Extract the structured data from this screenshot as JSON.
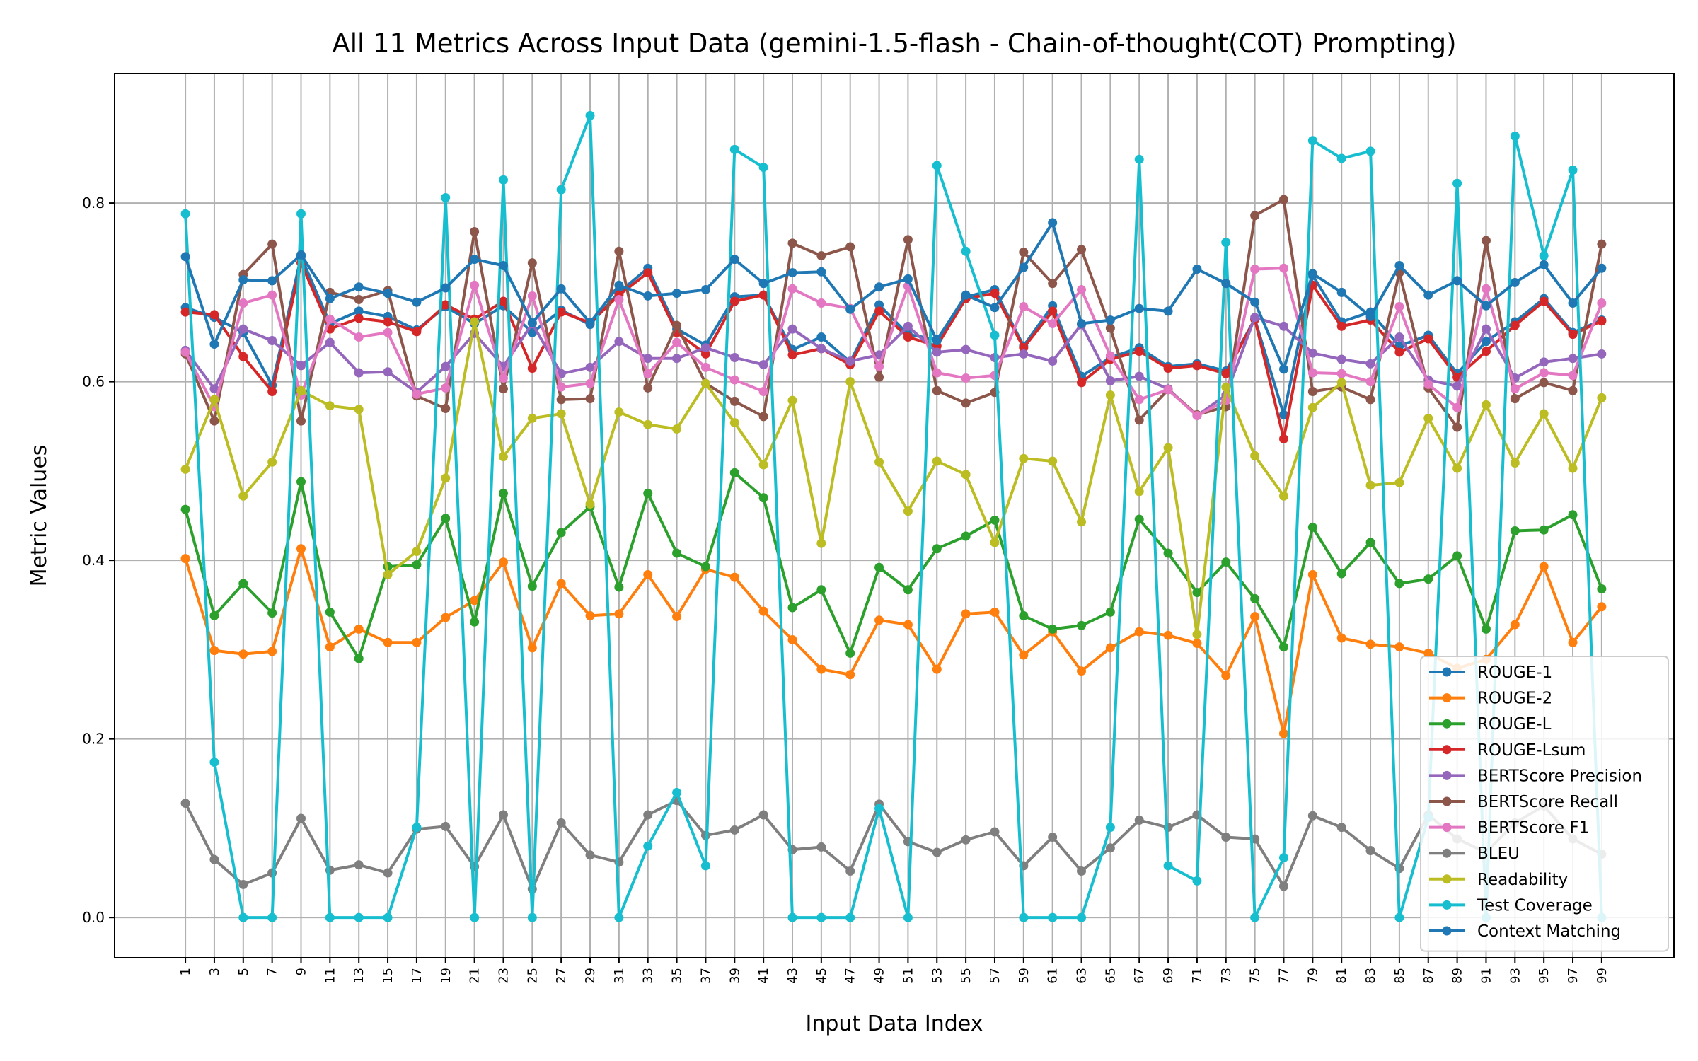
{
  "chart_data": {
    "type": "line",
    "title": "All 11 Metrics Across Input Data (gemini-1.5-flash - Chain-of-thought(COT) Prompting)",
    "xlabel": "Input Data Index",
    "ylabel": "Metric Values",
    "x": [
      1,
      3,
      5,
      7,
      9,
      11,
      13,
      15,
      17,
      19,
      21,
      23,
      25,
      27,
      29,
      31,
      33,
      35,
      37,
      39,
      41,
      43,
      45,
      47,
      49,
      51,
      53,
      55,
      57,
      59,
      61,
      63,
      65,
      67,
      69,
      71,
      73,
      75,
      77,
      79,
      81,
      83,
      85,
      87,
      89,
      91,
      93,
      95,
      97,
      99
    ],
    "xticks": [
      1,
      3,
      5,
      7,
      9,
      11,
      13,
      15,
      17,
      19,
      21,
      23,
      25,
      27,
      29,
      31,
      33,
      35,
      37,
      39,
      41,
      43,
      45,
      47,
      49,
      51,
      53,
      55,
      57,
      59,
      61,
      63,
      65,
      67,
      69,
      71,
      73,
      75,
      77,
      79,
      81,
      83,
      85,
      87,
      89,
      91,
      93,
      95,
      97,
      99
    ],
    "yticks": [
      0.0,
      0.2,
      0.4,
      0.6,
      0.8
    ],
    "ytick_labels": [
      "0.0",
      "0.2",
      "0.4",
      "0.6",
      "0.8"
    ],
    "xlim": [
      -3.9,
      104.0
    ],
    "ylim": [
      -0.045,
      0.945
    ],
    "grid": true,
    "legend_position": "lower-right",
    "series": [
      {
        "name": "ROUGE-1",
        "color": "#1f77b4",
        "values": [
          0.683,
          0.672,
          0.655,
          0.596,
          0.74,
          0.665,
          0.679,
          0.673,
          0.658,
          0.684,
          0.665,
          0.685,
          0.655,
          0.68,
          0.664,
          0.7,
          0.727,
          0.659,
          0.641,
          0.695,
          0.697,
          0.636,
          0.65,
          0.622,
          0.686,
          0.653,
          0.647,
          0.695,
          0.703,
          0.64,
          0.685,
          0.606,
          0.627,
          0.638,
          0.617,
          0.62,
          0.612,
          0.67,
          0.563,
          0.719,
          0.667,
          0.678,
          0.64,
          0.652,
          0.609,
          0.645,
          0.667,
          0.693,
          0.655,
          0.669
        ]
      },
      {
        "name": "ROUGE-2",
        "color": "#ff7f0e",
        "values": [
          0.402,
          0.299,
          0.295,
          0.298,
          0.413,
          0.303,
          0.323,
          0.308,
          0.308,
          0.336,
          0.355,
          0.398,
          0.302,
          0.374,
          0.338,
          0.34,
          0.384,
          0.337,
          0.39,
          0.381,
          0.343,
          0.311,
          0.278,
          0.272,
          0.333,
          0.328,
          0.278,
          0.34,
          0.342,
          0.294,
          0.32,
          0.276,
          0.302,
          0.32,
          0.316,
          0.307,
          0.271,
          0.337,
          0.206,
          0.384,
          0.313,
          0.306,
          0.303,
          0.296,
          0.279,
          0.289,
          0.328,
          0.393,
          0.308,
          0.348
        ]
      },
      {
        "name": "ROUGE-L",
        "color": "#2ca02c",
        "values": [
          0.457,
          0.338,
          0.374,
          0.341,
          0.488,
          0.342,
          0.29,
          0.393,
          0.395,
          0.447,
          0.331,
          0.475,
          0.371,
          0.431,
          0.46,
          0.37,
          0.475,
          0.408,
          0.393,
          0.498,
          0.47,
          0.347,
          0.367,
          0.296,
          0.392,
          0.367,
          0.413,
          0.427,
          0.445,
          0.338,
          0.323,
          0.327,
          0.342,
          0.446,
          0.408,
          0.364,
          0.398,
          0.357,
          0.303,
          0.437,
          0.385,
          0.42,
          0.374,
          0.379,
          0.405,
          0.323,
          0.433,
          0.434,
          0.451,
          0.368
        ]
      },
      {
        "name": "ROUGE-Lsum",
        "color": "#d62728",
        "values": [
          0.678,
          0.675,
          0.628,
          0.589,
          0.733,
          0.659,
          0.671,
          0.667,
          0.656,
          0.686,
          0.67,
          0.69,
          0.615,
          0.678,
          0.666,
          0.697,
          0.722,
          0.655,
          0.631,
          0.69,
          0.697,
          0.63,
          0.637,
          0.619,
          0.679,
          0.65,
          0.64,
          0.693,
          0.699,
          0.638,
          0.679,
          0.599,
          0.625,
          0.634,
          0.615,
          0.618,
          0.609,
          0.67,
          0.536,
          0.708,
          0.662,
          0.669,
          0.633,
          0.648,
          0.605,
          0.634,
          0.663,
          0.69,
          0.653,
          0.668
        ]
      },
      {
        "name": "BERTScore Precision",
        "color": "#9467bd",
        "values": [
          0.635,
          0.592,
          0.659,
          0.646,
          0.618,
          0.644,
          0.61,
          0.611,
          0.588,
          0.617,
          0.654,
          0.617,
          0.665,
          0.609,
          0.616,
          0.645,
          0.626,
          0.626,
          0.638,
          0.627,
          0.619,
          0.659,
          0.637,
          0.623,
          0.63,
          0.662,
          0.633,
          0.636,
          0.627,
          0.631,
          0.623,
          0.664,
          0.601,
          0.606,
          0.592,
          0.562,
          0.585,
          0.672,
          0.662,
          0.632,
          0.625,
          0.62,
          0.65,
          0.602,
          0.595,
          0.659,
          0.604,
          0.622,
          0.626,
          0.631
        ]
      },
      {
        "name": "BERTScore Recall",
        "color": "#8c564b",
        "values": [
          0.631,
          0.556,
          0.72,
          0.754,
          0.556,
          0.7,
          0.692,
          0.702,
          0.584,
          0.57,
          0.768,
          0.592,
          0.733,
          0.58,
          0.581,
          0.746,
          0.593,
          0.663,
          0.598,
          0.578,
          0.561,
          0.755,
          0.741,
          0.751,
          0.605,
          0.759,
          0.59,
          0.576,
          0.588,
          0.745,
          0.71,
          0.748,
          0.66,
          0.557,
          0.591,
          0.563,
          0.572,
          0.786,
          0.804,
          0.589,
          0.594,
          0.58,
          0.722,
          0.593,
          0.549,
          0.758,
          0.581,
          0.599,
          0.59,
          0.754
        ]
      },
      {
        "name": "BERTScore F1",
        "color": "#e377c2",
        "values": [
          0.633,
          0.572,
          0.688,
          0.697,
          0.585,
          0.67,
          0.65,
          0.655,
          0.586,
          0.593,
          0.708,
          0.604,
          0.696,
          0.594,
          0.598,
          0.692,
          0.609,
          0.644,
          0.616,
          0.602,
          0.589,
          0.704,
          0.688,
          0.682,
          0.617,
          0.707,
          0.61,
          0.604,
          0.607,
          0.684,
          0.665,
          0.703,
          0.629,
          0.58,
          0.591,
          0.562,
          0.579,
          0.726,
          0.727,
          0.61,
          0.609,
          0.6,
          0.684,
          0.597,
          0.571,
          0.704,
          0.592,
          0.61,
          0.607,
          0.688
        ]
      },
      {
        "name": "BLEU",
        "color": "#7f7f7f",
        "values": [
          0.128,
          0.065,
          0.037,
          0.05,
          0.111,
          0.053,
          0.059,
          0.05,
          0.099,
          0.102,
          0.057,
          0.115,
          0.032,
          0.106,
          0.07,
          0.062,
          0.115,
          0.131,
          0.092,
          0.098,
          0.115,
          0.076,
          0.079,
          0.052,
          0.127,
          0.085,
          0.073,
          0.087,
          0.096,
          0.058,
          0.09,
          0.052,
          0.078,
          0.109,
          0.101,
          0.115,
          0.09,
          0.088,
          0.035,
          0.114,
          0.101,
          0.075,
          0.055,
          0.115,
          0.088,
          0.073,
          0.106,
          0.125,
          0.088,
          0.071
        ]
      },
      {
        "name": "Readability",
        "color": "#bcbd22",
        "values": [
          0.502,
          0.58,
          0.472,
          0.51,
          0.59,
          0.573,
          0.569,
          0.384,
          0.41,
          0.492,
          0.667,
          0.516,
          0.559,
          0.564,
          0.463,
          0.566,
          0.552,
          0.547,
          0.598,
          0.554,
          0.507,
          0.579,
          0.419,
          0.6,
          0.51,
          0.455,
          0.511,
          0.496,
          0.42,
          0.514,
          0.511,
          0.443,
          0.585,
          0.477,
          0.526,
          0.317,
          0.594,
          0.517,
          0.472,
          0.571,
          0.599,
          0.484,
          0.487,
          0.559,
          0.503,
          0.574,
          0.509,
          0.564,
          0.503,
          0.582
        ]
      },
      {
        "name": "Test Coverage",
        "color": "#17becf",
        "values": [
          0.788,
          0.174,
          0.0,
          0.0,
          0.788,
          0.0,
          0.0,
          0.0,
          0.101,
          0.806,
          0.0,
          0.826,
          0.0,
          0.815,
          0.898,
          0.0,
          0.08,
          0.14,
          0.058,
          0.86,
          0.84,
          0.0,
          0.0,
          0.0,
          0.122,
          0.0,
          0.842,
          0.746,
          0.652,
          0.0,
          0.0,
          0.0,
          0.101,
          0.849,
          0.058,
          0.041,
          0.756,
          0.0,
          0.067,
          0.87,
          0.85,
          0.858,
          0.0,
          0.112,
          0.822,
          0.0,
          0.875,
          0.741,
          0.837,
          0.0
        ]
      },
      {
        "name": "Context Matching",
        "color": "#1f77b4",
        "values": [
          0.74,
          0.642,
          0.714,
          0.713,
          0.742,
          0.693,
          0.706,
          0.699,
          0.689,
          0.705,
          0.737,
          0.73,
          0.666,
          0.704,
          0.666,
          0.708,
          0.696,
          0.699,
          0.703,
          0.737,
          0.71,
          0.722,
          0.723,
          0.681,
          0.706,
          0.715,
          0.646,
          0.697,
          0.683,
          0.728,
          0.778,
          0.665,
          0.669,
          0.682,
          0.679,
          0.726,
          0.71,
          0.689,
          0.614,
          0.721,
          0.7,
          0.673,
          0.73,
          0.697,
          0.713,
          0.685,
          0.711,
          0.731,
          0.688,
          0.727
        ]
      }
    ]
  }
}
